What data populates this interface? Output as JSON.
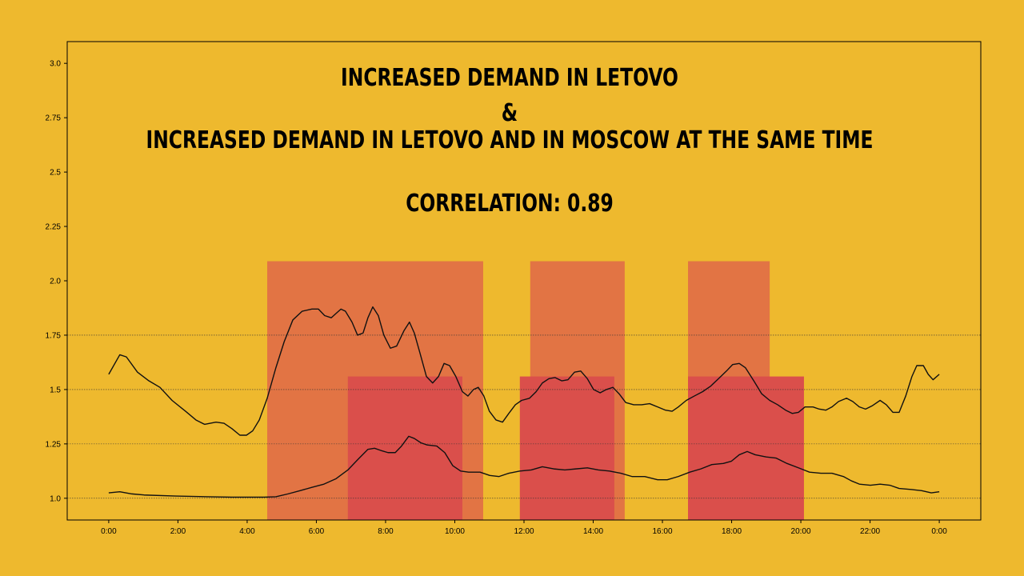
{
  "chart_data": {
    "type": "line",
    "title_lines": [
      "INCREASED DEMAND IN LETOVO",
      "&",
      "INCREASED DEMAND IN LETOVO AND IN MOSCOW AT THE SAME TIME"
    ],
    "subtitle": "CORRELATION: 0.89",
    "background": "#eeb92e",
    "title_color": "#13233f",
    "subtitle_color": "#ffffff",
    "xlim": [
      -1.2,
      25.2
    ],
    "ylim": [
      0.9,
      3.1
    ],
    "xticks": [
      {
        "value": 0,
        "label": "0:00"
      },
      {
        "value": 2,
        "label": "2:00"
      },
      {
        "value": 4,
        "label": "4:00"
      },
      {
        "value": 6,
        "label": "6:00"
      },
      {
        "value": 8,
        "label": "8:00"
      },
      {
        "value": 10,
        "label": "10:00"
      },
      {
        "value": 12,
        "label": "12:00"
      },
      {
        "value": 14,
        "label": "14:00"
      },
      {
        "value": 16,
        "label": "16:00"
      },
      {
        "value": 18,
        "label": "18:00"
      },
      {
        "value": 20,
        "label": "20:00"
      },
      {
        "value": 22,
        "label": "22:00"
      },
      {
        "value": 24,
        "label": "0:00"
      }
    ],
    "yticks": [
      {
        "value": 1,
        "label": "1.0"
      },
      1.25,
      1.5,
      1.75,
      {
        "value": 2,
        "label": "2.0"
      },
      2.25,
      2.5,
      2.75,
      {
        "value": 3,
        "label": "3.0"
      }
    ],
    "hlines": [
      1,
      1.25,
      1.5,
      1.75
    ],
    "spans": [
      {
        "x": [
          4.58,
          10.82
        ],
        "top": 2.09,
        "color": "#e27444"
      },
      {
        "x": [
          12.18,
          14.91
        ],
        "top": 2.09,
        "color": "#e27444"
      },
      {
        "x": [
          16.74,
          19.1
        ],
        "top": 2.09,
        "color": "#e27444"
      },
      {
        "x": [
          6.91,
          10.22
        ],
        "top": 1.56,
        "color": "#da4f4b"
      },
      {
        "x": [
          11.88,
          14.61
        ],
        "top": 1.56,
        "color": "#da4f4b"
      },
      {
        "x": [
          16.74,
          20.09
        ],
        "top": 1.56,
        "color": "#da4f4b"
      }
    ],
    "series": [
      {
        "color": "#111111",
        "x": [
          0,
          0.32,
          0.51,
          0.83,
          1.16,
          1.48,
          1.83,
          2.22,
          2.52,
          2.77,
          3.1,
          3.33,
          3.56,
          3.79,
          3.98,
          4.16,
          4.35,
          4.58,
          4.83,
          5.07,
          5.32,
          5.59,
          5.87,
          6.06,
          6.24,
          6.43,
          6.57,
          6.71,
          6.84,
          7.03,
          7.19,
          7.35,
          7.49,
          7.63,
          7.79,
          7.95,
          8.14,
          8.32,
          8.53,
          8.69,
          8.83,
          8.99,
          9.18,
          9.36,
          9.53,
          9.69,
          9.85,
          10.03,
          10.22,
          10.38,
          10.54,
          10.68,
          10.84,
          11.0,
          11.19,
          11.38,
          11.56,
          11.75,
          11.93,
          12.16,
          12.35,
          12.53,
          12.72,
          12.9,
          13.09,
          13.27,
          13.46,
          13.64,
          13.83,
          14.01,
          14.2,
          14.38,
          14.57,
          14.75,
          14.94,
          15.17,
          15.4,
          15.63,
          15.86,
          16.09,
          16.28,
          16.46,
          16.69,
          16.92,
          17.16,
          17.39,
          17.62,
          17.85,
          18.03,
          18.22,
          18.4,
          18.64,
          18.87,
          19.1,
          19.33,
          19.56,
          19.75,
          19.93,
          20.12,
          20.35,
          20.53,
          20.72,
          20.9,
          21.09,
          21.32,
          21.5,
          21.69,
          21.87,
          22.06,
          22.29,
          22.47,
          22.66,
          22.84,
          23.03,
          23.21,
          23.35,
          23.54,
          23.68,
          23.82,
          24
        ],
        "values": [
          1.57,
          1.66,
          1.65,
          1.58,
          1.54,
          1.51,
          1.45,
          1.4,
          1.36,
          1.34,
          1.35,
          1.345,
          1.32,
          1.29,
          1.29,
          1.31,
          1.36,
          1.46,
          1.6,
          1.72,
          1.82,
          1.86,
          1.87,
          1.87,
          1.84,
          1.83,
          1.85,
          1.87,
          1.86,
          1.81,
          1.75,
          1.76,
          1.83,
          1.88,
          1.84,
          1.75,
          1.69,
          1.7,
          1.77,
          1.81,
          1.76,
          1.67,
          1.56,
          1.53,
          1.56,
          1.62,
          1.61,
          1.56,
          1.49,
          1.47,
          1.5,
          1.51,
          1.47,
          1.4,
          1.36,
          1.35,
          1.39,
          1.43,
          1.45,
          1.46,
          1.49,
          1.53,
          1.55,
          1.555,
          1.54,
          1.545,
          1.58,
          1.585,
          1.55,
          1.5,
          1.485,
          1.5,
          1.51,
          1.48,
          1.44,
          1.43,
          1.43,
          1.435,
          1.42,
          1.405,
          1.4,
          1.42,
          1.45,
          1.47,
          1.49,
          1.515,
          1.55,
          1.585,
          1.615,
          1.62,
          1.6,
          1.54,
          1.48,
          1.45,
          1.43,
          1.405,
          1.39,
          1.395,
          1.42,
          1.42,
          1.41,
          1.405,
          1.42,
          1.445,
          1.46,
          1.445,
          1.42,
          1.41,
          1.425,
          1.45,
          1.43,
          1.395,
          1.395,
          1.47,
          1.56,
          1.61,
          1.61,
          1.57,
          1.545,
          1.57
        ]
      },
      {
        "color": "#111111",
        "x": [
          0,
          0.32,
          0.67,
          1.02,
          1.94,
          2.87,
          3.56,
          4.49,
          4.83,
          5.18,
          5.53,
          5.87,
          6.22,
          6.57,
          6.91,
          7.21,
          7.49,
          7.68,
          7.86,
          8.07,
          8.28,
          8.46,
          8.67,
          8.83,
          9.02,
          9.2,
          9.48,
          9.71,
          9.94,
          10.17,
          10.4,
          10.73,
          11.01,
          11.28,
          11.56,
          11.88,
          12.21,
          12.53,
          12.86,
          13.18,
          13.5,
          13.83,
          14.15,
          14.47,
          14.8,
          15.12,
          15.49,
          15.86,
          16.14,
          16.46,
          16.79,
          17.11,
          17.43,
          17.76,
          17.99,
          18.22,
          18.45,
          18.68,
          19.0,
          19.28,
          19.6,
          19.93,
          20.25,
          20.58,
          20.9,
          21.23,
          21.46,
          21.69,
          22.01,
          22.29,
          22.57,
          22.84,
          23.21,
          23.49,
          23.77,
          24
        ],
        "values": [
          1.025,
          1.03,
          1.02,
          1.015,
          1.01,
          1.007,
          1.005,
          1.005,
          1.007,
          1.02,
          1.035,
          1.05,
          1.065,
          1.09,
          1.13,
          1.18,
          1.225,
          1.23,
          1.22,
          1.21,
          1.21,
          1.24,
          1.285,
          1.275,
          1.255,
          1.245,
          1.24,
          1.21,
          1.15,
          1.125,
          1.12,
          1.12,
          1.105,
          1.1,
          1.115,
          1.125,
          1.13,
          1.145,
          1.135,
          1.13,
          1.135,
          1.14,
          1.13,
          1.125,
          1.115,
          1.1,
          1.1,
          1.085,
          1.085,
          1.1,
          1.12,
          1.135,
          1.155,
          1.16,
          1.17,
          1.2,
          1.215,
          1.2,
          1.19,
          1.185,
          1.16,
          1.14,
          1.12,
          1.115,
          1.115,
          1.1,
          1.08,
          1.065,
          1.06,
          1.065,
          1.06,
          1.045,
          1.04,
          1.035,
          1.025,
          1.03
        ]
      }
    ]
  }
}
